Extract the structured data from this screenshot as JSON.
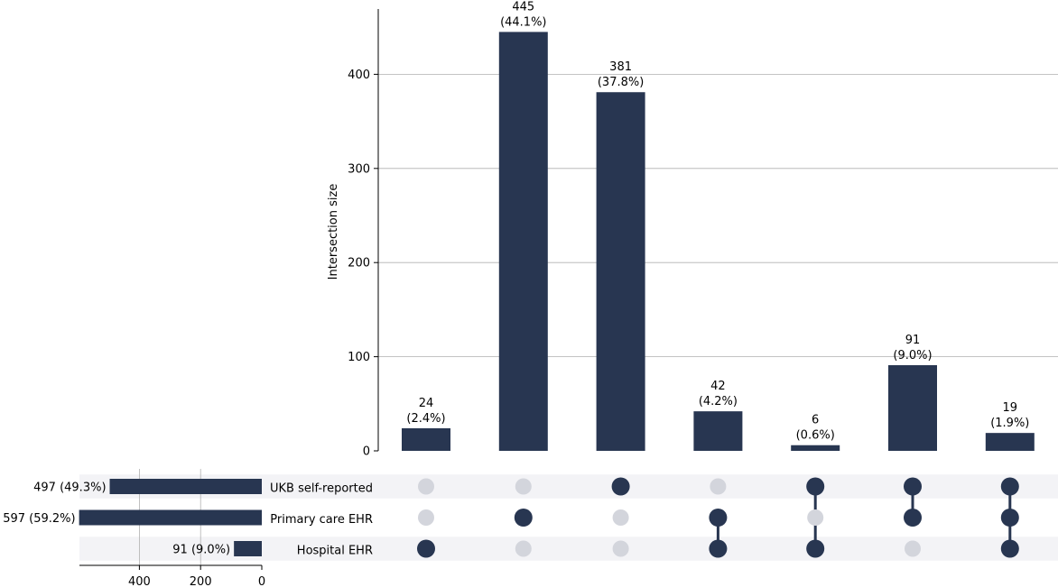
{
  "chart_data": {
    "type": "bar",
    "subtype": "upset",
    "title": "",
    "ylabel": "Intersection size",
    "ylim": [
      0,
      470
    ],
    "yticks": [
      0,
      100,
      200,
      300,
      400
    ],
    "grid": true,
    "bar_color": "#283651",
    "inactive_dot_color": "#d3d5dc",
    "stripe_color": "#f3f3f6",
    "sets": [
      {
        "name": "UKB self-reported",
        "size": 497,
        "label": "497 (49.3%)"
      },
      {
        "name": "Primary care EHR",
        "size": 597,
        "label": "597 (59.2%)"
      },
      {
        "name": "Hospital EHR",
        "size": 91,
        "label": "91 (9.0%)"
      }
    ],
    "set_size_ticks": [
      400,
      200,
      0
    ],
    "intersections": [
      {
        "members": [
          "Hospital EHR"
        ],
        "value": 24,
        "label_count": "24",
        "label_pct": "(2.4%)"
      },
      {
        "members": [
          "Primary care EHR"
        ],
        "value": 445,
        "label_count": "445",
        "label_pct": "(44.1%)"
      },
      {
        "members": [
          "UKB self-reported"
        ],
        "value": 381,
        "label_count": "381",
        "label_pct": "(37.8%)"
      },
      {
        "members": [
          "Primary care EHR",
          "Hospital EHR"
        ],
        "value": 42,
        "label_count": "42",
        "label_pct": "(4.2%)"
      },
      {
        "members": [
          "UKB self-reported",
          "Hospital EHR"
        ],
        "value": 6,
        "label_count": "6",
        "label_pct": "(0.6%)"
      },
      {
        "members": [
          "UKB self-reported",
          "Primary care EHR"
        ],
        "value": 91,
        "label_count": "91",
        "label_pct": "(9.0%)"
      },
      {
        "members": [
          "UKB self-reported",
          "Primary care EHR",
          "Hospital EHR"
        ],
        "value": 19,
        "label_count": "19",
        "label_pct": "(1.9%)"
      }
    ]
  }
}
